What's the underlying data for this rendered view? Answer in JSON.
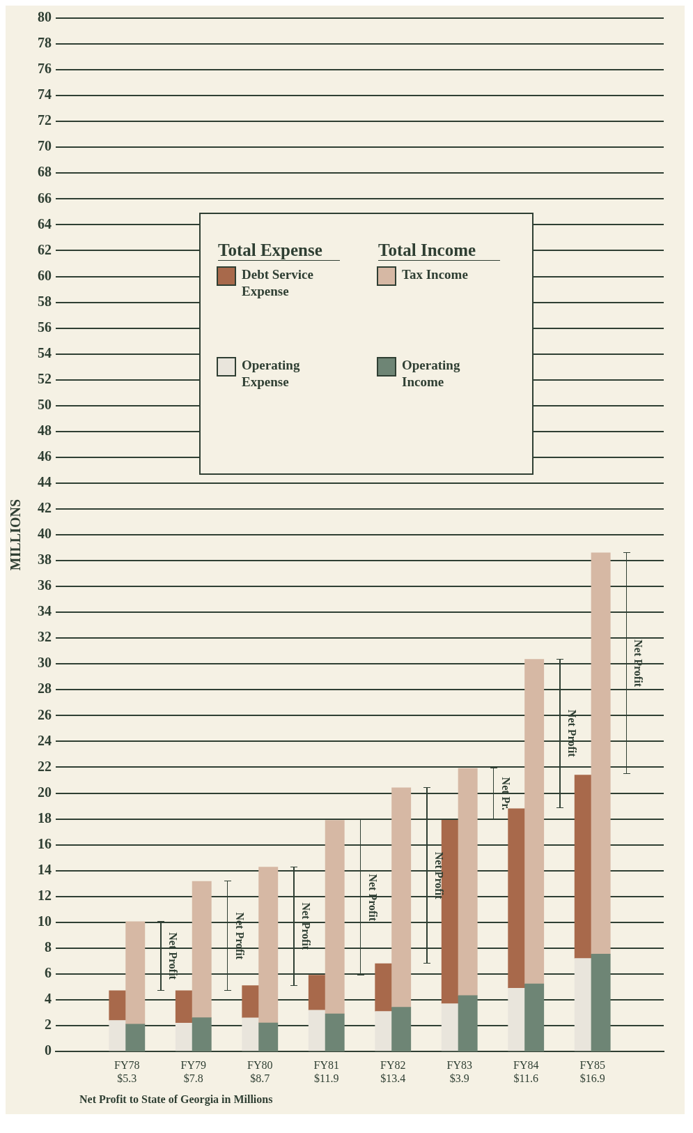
{
  "chart_data": [
    {
      "type": "bar",
      "stacked": true,
      "ylabel": "MILLIONS",
      "legend_title": "Total Expense",
      "categories": [
        "FY78\n$5.3",
        "FY79\n$7.8",
        "FY80\n$8.7",
        "FY81\n$11.9",
        "FY82\n$13.4",
        "FY83\n$3.9",
        "FY84\n$11.6",
        "FY85\n$16.9"
      ],
      "series": [
        {
          "name": "Operating Expense",
          "color": "#e9e5dc",
          "values": [
            2.4,
            2.2,
            2.6,
            3.2,
            3.1,
            3.7,
            4.9,
            7.2
          ]
        },
        {
          "name": "Debt Service Expense",
          "color": "#a8694b",
          "values": [
            2.3,
            2.5,
            2.5,
            2.7,
            3.7,
            14.2,
            13.9,
            14.2
          ]
        }
      ],
      "ylim": [
        0,
        80
      ],
      "yticks": [
        0,
        2,
        4,
        6,
        8,
        10,
        12,
        14,
        16,
        18,
        20,
        22,
        24,
        26,
        28,
        30,
        32,
        34,
        36,
        38,
        40,
        42,
        44,
        46,
        48,
        50,
        52,
        54,
        56,
        58,
        60,
        62,
        64,
        66,
        68,
        70,
        72,
        74,
        76,
        78,
        80
      ],
      "grid": "y",
      "legend": "top",
      "annotations": [
        "Net Profit to State of Georgia in Millions"
      ]
    },
    {
      "type": "bar",
      "stacked": true,
      "legend_title": "Total Income",
      "tick_labels": false,
      "categories": [
        null,
        null,
        null,
        null,
        null,
        null,
        null,
        null
      ],
      "series": [
        {
          "name": "Operating Income",
          "color": "#6e8575",
          "values": [
            2.1,
            2.6,
            2.2,
            2.9,
            3.4,
            4.3,
            5.2,
            7.5
          ]
        },
        {
          "name": "Tax Income",
          "color": "#d6b8a4",
          "values": [
            7.9,
            10.5,
            12.0,
            14.9,
            16.9,
            17.5,
            25.0,
            30.9
          ]
        }
      ],
      "ylim": [
        0,
        80
      ],
      "yticks": [
        0,
        2,
        4,
        6,
        8,
        10,
        12,
        14,
        16,
        18,
        20,
        22,
        24,
        26,
        28,
        30,
        32,
        34,
        36,
        38,
        40,
        42,
        44,
        46,
        48,
        50,
        52,
        54,
        56,
        58,
        60,
        62,
        64,
        66,
        68,
        70,
        72,
        74,
        76,
        78,
        80
      ],
      "legend": "top",
      "annotations": [
        "Net Profit",
        "Net Profit",
        "Net Profit",
        "Net Profit",
        "Net Profit",
        "Net Pr.",
        "Net Profit",
        "Net Profit"
      ]
    }
  ]
}
